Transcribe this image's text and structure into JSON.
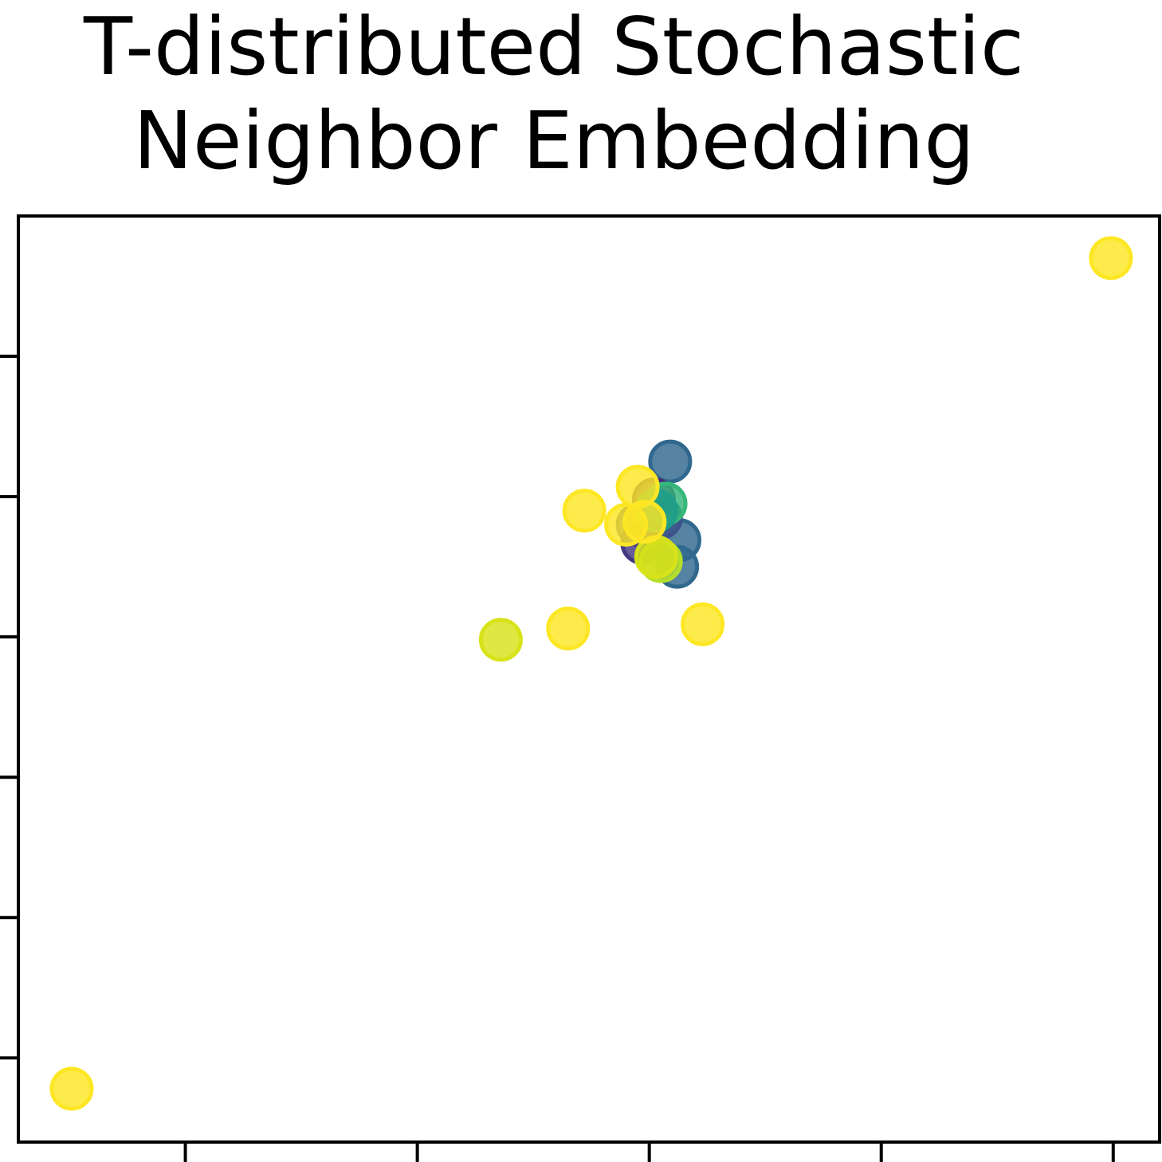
{
  "chart_data": {
    "type": "scatter",
    "title_lines": [
      "T-distributed Stochastic",
      "Neighbor Embedding"
    ],
    "xlabel": "",
    "ylabel": "",
    "xlim": [
      -2.72,
      2.2
    ],
    "ylim": [
      -3.1,
      3.5
    ],
    "grid": false,
    "legend": "none",
    "x_ticks": [
      -2,
      -1,
      0,
      1,
      2
    ],
    "y_ticks": [
      -2.5,
      -1.5,
      -0.5,
      0.5,
      1.5,
      2.5
    ],
    "tick_labels_visible": false,
    "colormap": "viridis",
    "points": [
      {
        "x": 0.09,
        "y": 1.75,
        "color": "#31688e"
      },
      {
        "x": 0.12,
        "y": 1.0,
        "color": "#31688e"
      },
      {
        "x": 0.13,
        "y": 1.19,
        "color": "#31688e"
      },
      {
        "x": 0.05,
        "y": 1.35,
        "color": "#3b528b"
      },
      {
        "x": 0.02,
        "y": 1.48,
        "color": "#482878"
      },
      {
        "x": -0.05,
        "y": 1.3,
        "color": "#3e4a89"
      },
      {
        "x": -0.03,
        "y": 1.17,
        "color": "#443983"
      },
      {
        "x": 0.07,
        "y": 1.45,
        "color": "#35b779"
      },
      {
        "x": 0.03,
        "y": 1.4,
        "color": "#1f9e89"
      },
      {
        "x": 0.05,
        "y": 1.04,
        "color": "#b5de2b"
      },
      {
        "x": 0.03,
        "y": 1.07,
        "color": "#d8e219"
      },
      {
        "x": -0.05,
        "y": 1.57,
        "color": "#fde725"
      },
      {
        "x": -0.1,
        "y": 1.3,
        "color": "#fde725"
      },
      {
        "x": -0.28,
        "y": 1.4,
        "color": "#fde725"
      },
      {
        "x": -0.35,
        "y": 0.56,
        "color": "#fde725"
      },
      {
        "x": 0.23,
        "y": 0.59,
        "color": "#fde725"
      },
      {
        "x": -0.64,
        "y": 0.48,
        "color": "#d8e219"
      },
      {
        "x": -0.02,
        "y": 1.32,
        "color": "#fde725"
      },
      {
        "x": 1.99,
        "y": 3.2,
        "color": "#fde725"
      },
      {
        "x": -2.49,
        "y": -2.72,
        "color": "#fde725"
      }
    ]
  }
}
